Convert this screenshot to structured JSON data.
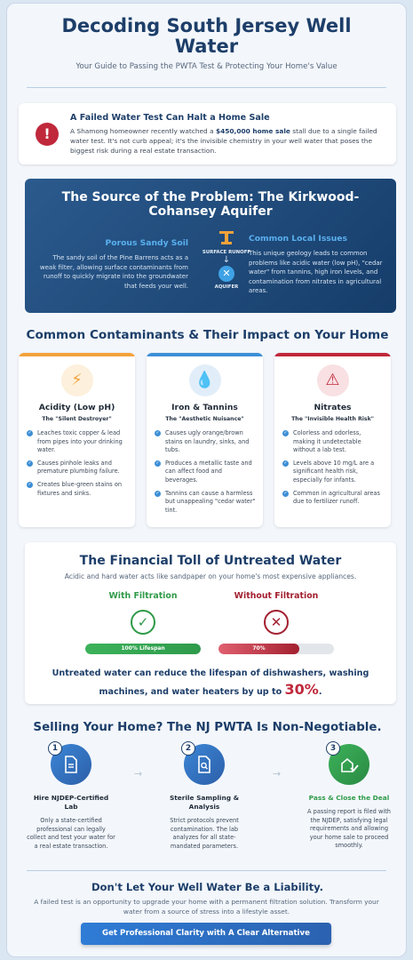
{
  "hero": {
    "title": "Decoding South Jersey Well Water",
    "subtitle": "Your Guide to Passing the PWTA Test & Protecting Your Home's Value"
  },
  "alert": {
    "icon": "exclamation-icon",
    "title": "A Failed Water Test Can Halt a Home Sale",
    "text_before": "A Shamong homeowner recently watched a ",
    "text_bold": "$450,000 home sale",
    "text_after": " stall due to a single failed water test. It's not curb appeal; it's the invisible chemistry in your well water that poses the biggest risk during a real estate transaction."
  },
  "source": {
    "title": "The Source of the Problem: The Kirkwood-Cohansey Aquifer",
    "left_heading": "Porous Sandy Soil",
    "left_text": "The sandy soil of the Pine Barrens acts as a weak filter, allowing surface contaminants from runoff to quickly migrate into the groundwater that feeds your well.",
    "runoff_label": "SURFACE RUNOFF",
    "aquifer_label": "AQUIFER",
    "right_heading": "Common Local Issues",
    "right_text": "This unique geology leads to common problems like acidic water (low pH), \"cedar water\" from tannins, high iron levels, and contamination from nitrates in agricultural areas."
  },
  "contaminants": {
    "title": "Common Contaminants & Their Impact on Your Home",
    "cards": [
      {
        "name": "Acidity (Low pH)",
        "tag": "The \"Silent Destroyer\"",
        "color": "#f2a23a",
        "icon": "lightning-icon",
        "items": [
          "Leaches toxic copper & lead from pipes into your drinking water.",
          "Causes pinhole leaks and premature plumbing failure.",
          "Creates blue-green stains on fixtures and sinks."
        ]
      },
      {
        "name": "Iron & Tannins",
        "tag": "The \"Aesthetic Nuisance\"",
        "color": "#3d8fd6",
        "icon": "water-drops-icon",
        "items": [
          "Causes ugly orange/brown stains on laundry, sinks, and tubs.",
          "Produces a metallic taste and can affect food and beverages.",
          "Tannins can cause a harmless but unappealing \"cedar water\" tint."
        ]
      },
      {
        "name": "Nitrates",
        "tag": "The \"Invisible Health Risk\"",
        "color": "#c0283b",
        "icon": "warning-icon",
        "items": [
          "Colorless and odorless, making it undetectable without a lab test.",
          "Levels above 10 mg/L are a significant health risk, especially for infants.",
          "Common in agricultural areas due to fertilizer runoff."
        ]
      }
    ]
  },
  "financial": {
    "title": "The Financial Toll of Untreated Water",
    "subtitle": "Acidic and hard water acts like sandpaper on your home's most expensive appliances.",
    "with_label": "With Filtration",
    "without_label": "Without Filtration",
    "with_bar_text": "100% Lifespan",
    "with_value": 1.0,
    "without_bar_text": "70%",
    "without_value": 0.7,
    "bottom_text": "Untreated water can reduce the lifespan of dishwashers, washing machines, and water heaters by up to ",
    "bottom_pct": "30%",
    "bottom_end": "."
  },
  "pwta": {
    "title": "Selling Your Home? The NJ PWTA Is Non-Negotiable.",
    "steps": [
      {
        "num": "1",
        "icon": "document-icon",
        "title": "Hire NJDEP-Certified Lab",
        "text": "Only a state-certified professional can legally collect and test your water for a real estate transaction."
      },
      {
        "num": "2",
        "icon": "magnifier-document-icon",
        "title": "Sterile Sampling & Analysis",
        "text": "Strict protocols prevent contamination. The lab analyzes for all state-mandated parameters."
      },
      {
        "num": "3",
        "icon": "house-check-icon",
        "title": "Pass & Close the Deal",
        "text": "A passing report is filed with the NJDEP, satisfying legal requirements and allowing your home sale to proceed smoothly."
      }
    ]
  },
  "cta": {
    "title": "Don't Let Your Well Water Be a Liability.",
    "text": "A failed test is an opportunity to upgrade your home with a permanent filtration solution. Transform your water from a source of stress into a lifestyle asset.",
    "button": "Get Professional Clarity with A Clear Alternative"
  }
}
